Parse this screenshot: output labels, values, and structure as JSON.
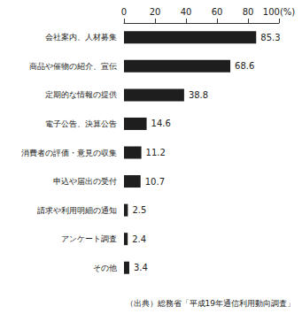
{
  "chart_data": {
    "type": "bar",
    "orientation": "horizontal",
    "categories": [
      "会社案内、人材募集",
      "商品や催物の紹介、宣伝",
      "定期的な情報の提供",
      "電子公告、決算公告",
      "消費者の評価・意見の収集",
      "申込や届出の受付",
      "請求や利用明細の通知",
      "アンケート調査",
      "その他"
    ],
    "values": [
      85.3,
      68.6,
      38.8,
      14.6,
      11.2,
      10.7,
      2.5,
      2.4,
      3.4
    ],
    "color": "#1e1e1e",
    "xlim": [
      0,
      100
    ],
    "xticks": [
      0,
      20,
      40,
      60,
      80,
      {
        "value": 100,
        "label": "100(%)"
      }
    ],
    "grid": false,
    "data_labels": true,
    "annotations": [
      "（出典）総務省「平成19年通信利用動向調査」"
    ]
  }
}
